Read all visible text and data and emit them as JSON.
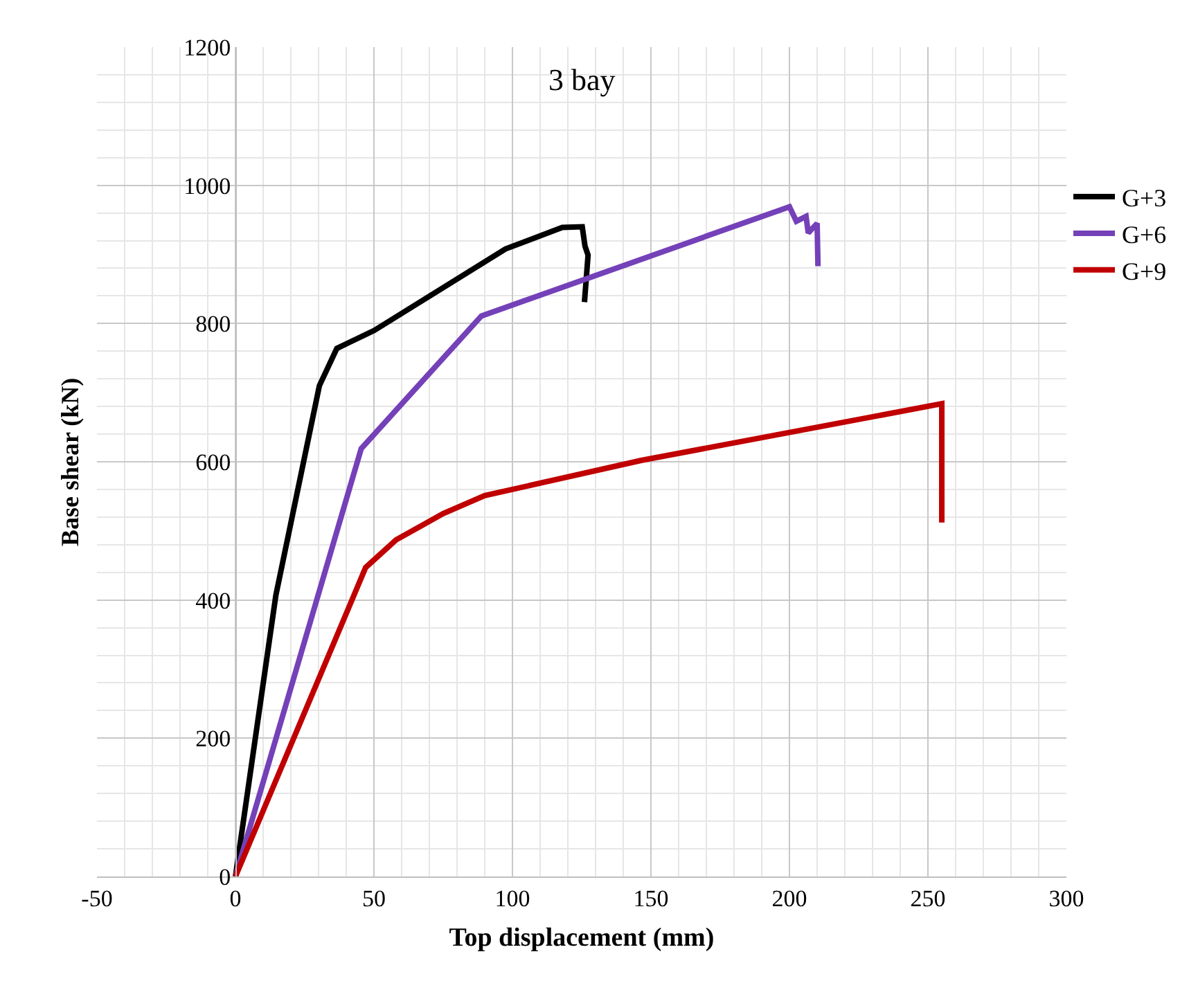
{
  "chart_data": {
    "type": "line",
    "title": "3 bay",
    "xlabel": "Top displacement (mm)",
    "ylabel": "Base shear (kN)",
    "xlim": [
      -50,
      300
    ],
    "xticks": [
      -50,
      0,
      50,
      100,
      150,
      200,
      250,
      300
    ],
    "ylim": [
      0,
      1200
    ],
    "yticks": [
      0,
      200,
      400,
      600,
      800,
      1000,
      1200
    ],
    "grid": true,
    "legend": "top right",
    "marker": "none",
    "line_style": "solid",
    "series": [
      {
        "name": "G+3",
        "color": "#000000",
        "x": [
          0,
          14.6,
          30.3,
          36.6,
          50.1,
          97.5,
          118,
          125.2,
          126.2,
          127.3,
          126
        ],
        "values": [
          0,
          407,
          710,
          764,
          790,
          908,
          939,
          940,
          912,
          899,
          831
        ]
      },
      {
        "name": "G+6",
        "color": "#7441b8",
        "x": [
          0,
          45.4,
          88.8,
          200,
          202.5,
          206,
          206.8,
          210,
          210.3
        ],
        "values": [
          0,
          619,
          811,
          969,
          948,
          955,
          931,
          945,
          883
        ]
      },
      {
        "name": "G+9",
        "color": "#c00000",
        "x": [
          0,
          47,
          58,
          75,
          90,
          146.5,
          255,
          255
        ],
        "values": [
          0,
          447,
          487,
          525,
          551,
          602,
          684,
          512
        ]
      }
    ]
  }
}
